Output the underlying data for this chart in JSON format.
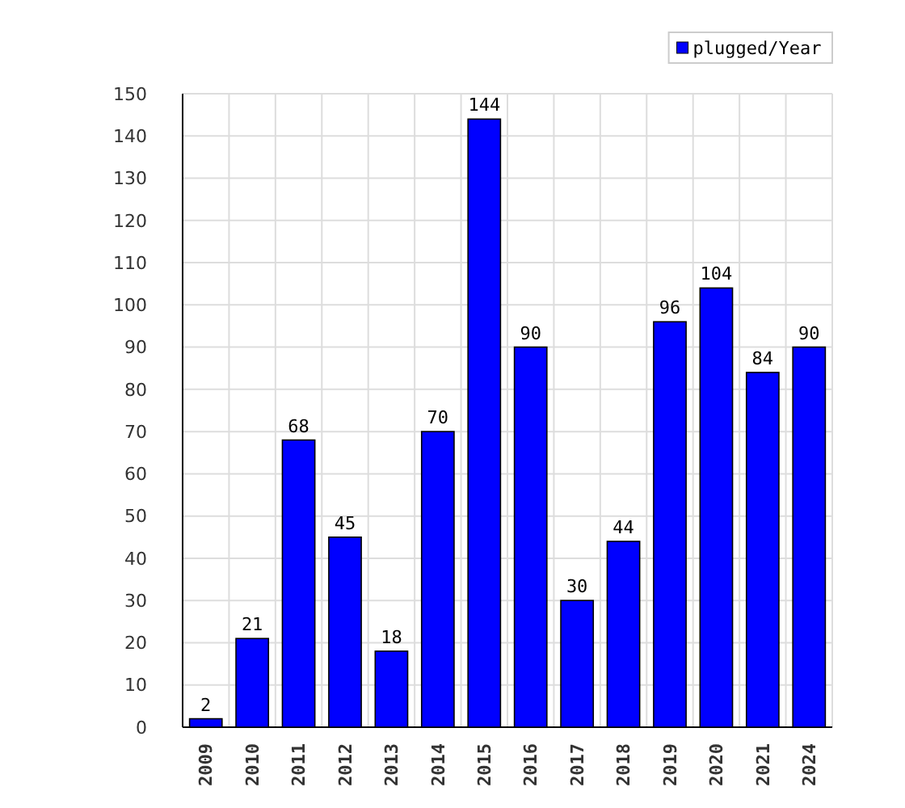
{
  "chart_data": {
    "type": "bar",
    "categories": [
      "2009",
      "2010",
      "2011",
      "2012",
      "2013",
      "2014",
      "2015",
      "2016",
      "2017",
      "2018",
      "2019",
      "2020",
      "2021",
      "2024"
    ],
    "series": [
      {
        "name": "plugged/Year",
        "color": "#0000ff",
        "values": [
          2,
          21,
          68,
          45,
          18,
          70,
          144,
          90,
          30,
          44,
          96,
          104,
          84,
          90
        ]
      }
    ],
    "ylim": [
      0,
      150
    ],
    "yticks": [
      0,
      10,
      20,
      30,
      40,
      50,
      60,
      70,
      80,
      90,
      100,
      110,
      120,
      130,
      140,
      150
    ],
    "grid": true,
    "legend": "top right",
    "data_labels": true
  }
}
